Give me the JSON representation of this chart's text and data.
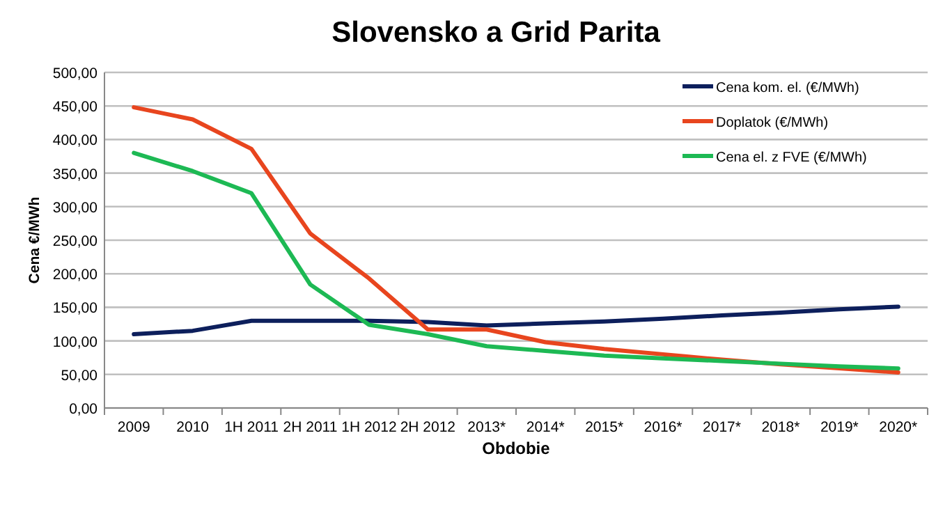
{
  "chart_data": {
    "type": "line",
    "title": "Slovensko a Grid Parita",
    "xlabel": "Obdobie",
    "ylabel": "Cena €/MWh",
    "categories": [
      "2009",
      "2010",
      "1H 2011",
      "2H 2011",
      "1H 2012",
      "2H 2012",
      "2013*",
      "2014*",
      "2015*",
      "2016*",
      "2017*",
      "2018*",
      "2019*",
      "2020*"
    ],
    "series": [
      {
        "name": "Cena  kom. el. (€/MWh)",
        "color": "#0d1f5c",
        "values": [
          110,
          115,
          130,
          130,
          130,
          128,
          123,
          126,
          129,
          133,
          138,
          142,
          147,
          151
        ]
      },
      {
        "name": "Doplatok (€/MWh)",
        "color": "#e8451e",
        "values": [
          448,
          430,
          386,
          260,
          193,
          117,
          117,
          98,
          88,
          80,
          72,
          65,
          59,
          53
        ]
      },
      {
        "name": "Cena  el. z FVE (€/MWh)",
        "color": "#1db954",
        "values": [
          380,
          353,
          320,
          184,
          124,
          110,
          92,
          85,
          78,
          74,
          70,
          66,
          62,
          59
        ]
      }
    ],
    "ylim": [
      0,
      500
    ],
    "yticks": [
      {
        "value": 0,
        "label": "0,00"
      },
      {
        "value": 50,
        "label": "50,00"
      },
      {
        "value": 100,
        "label": "100,00"
      },
      {
        "value": 150,
        "label": "150,00"
      },
      {
        "value": 200,
        "label": "200,00"
      },
      {
        "value": 250,
        "label": "250,00"
      },
      {
        "value": 300,
        "label": "300,00"
      },
      {
        "value": 350,
        "label": "350,00"
      },
      {
        "value": 400,
        "label": "400,00"
      },
      {
        "value": 450,
        "label": "450,00"
      },
      {
        "value": 500,
        "label": "500,00"
      }
    ],
    "grid": "y",
    "legend": "top right",
    "marker": "none",
    "line_style": "solid"
  }
}
